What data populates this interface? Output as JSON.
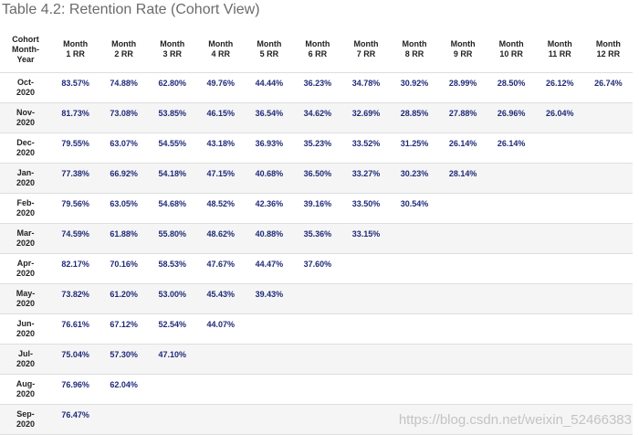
{
  "title": "Table 4.2: Retention Rate (Cohort View)",
  "colors": {
    "title_text": "#6b6b6b",
    "header_text": "#222222",
    "value_text": "#1f2a78",
    "row_alt_bg": "#f5f5f5",
    "border": "#dedede"
  },
  "table": {
    "headers": [
      [
        "Cohort",
        "Month-",
        "Year"
      ],
      [
        "Month",
        "1 RR"
      ],
      [
        "Month",
        "2 RR"
      ],
      [
        "Month",
        "3 RR"
      ],
      [
        "Month",
        "4 RR"
      ],
      [
        "Month",
        "5 RR"
      ],
      [
        "Month",
        "6 RR"
      ],
      [
        "Month",
        "7 RR"
      ],
      [
        "Month",
        "8 RR"
      ],
      [
        "Month",
        "9 RR"
      ],
      [
        "Month",
        "10 RR"
      ],
      [
        "Month",
        "11 RR"
      ],
      [
        "Month",
        "12 RR"
      ]
    ],
    "rows": [
      {
        "cohort": [
          "Oct-",
          "2020"
        ],
        "values": [
          "83.57%",
          "74.88%",
          "62.80%",
          "49.76%",
          "44.44%",
          "36.23%",
          "34.78%",
          "30.92%",
          "28.99%",
          "28.50%",
          "26.12%",
          "26.74%"
        ]
      },
      {
        "cohort": [
          "Nov-",
          "2020"
        ],
        "values": [
          "81.73%",
          "73.08%",
          "53.85%",
          "46.15%",
          "36.54%",
          "34.62%",
          "32.69%",
          "28.85%",
          "27.88%",
          "26.96%",
          "26.04%"
        ]
      },
      {
        "cohort": [
          "Dec-",
          "2020"
        ],
        "values": [
          "79.55%",
          "63.07%",
          "54.55%",
          "43.18%",
          "36.93%",
          "35.23%",
          "33.52%",
          "31.25%",
          "26.14%",
          "26.14%"
        ]
      },
      {
        "cohort": [
          "Jan-",
          "2020"
        ],
        "values": [
          "77.38%",
          "66.92%",
          "54.18%",
          "47.15%",
          "40.68%",
          "36.50%",
          "33.27%",
          "30.23%",
          "28.14%"
        ]
      },
      {
        "cohort": [
          "Feb-",
          "2020"
        ],
        "values": [
          "79.56%",
          "63.05%",
          "54.68%",
          "48.52%",
          "42.36%",
          "39.16%",
          "33.50%",
          "30.54%"
        ]
      },
      {
        "cohort": [
          "Mar-",
          "2020"
        ],
        "values": [
          "74.59%",
          "61.88%",
          "55.80%",
          "48.62%",
          "40.88%",
          "35.36%",
          "33.15%"
        ]
      },
      {
        "cohort": [
          "Apr-",
          "2020"
        ],
        "values": [
          "82.17%",
          "70.16%",
          "58.53%",
          "47.67%",
          "44.47%",
          "37.60%"
        ]
      },
      {
        "cohort": [
          "May-",
          "2020"
        ],
        "values": [
          "73.82%",
          "61.20%",
          "53.00%",
          "45.43%",
          "39.43%"
        ]
      },
      {
        "cohort": [
          "Jun-",
          "2020"
        ],
        "values": [
          "76.61%",
          "67.12%",
          "52.54%",
          "44.07%"
        ]
      },
      {
        "cohort": [
          "Jul-",
          "2020"
        ],
        "values": [
          "75.04%",
          "57.30%",
          "47.10%"
        ]
      },
      {
        "cohort": [
          "Aug-",
          "2020"
        ],
        "values": [
          "76.96%",
          "62.04%"
        ]
      },
      {
        "cohort": [
          "Sep-",
          "2020"
        ],
        "values": [
          "76.47%"
        ]
      }
    ]
  },
  "watermark": "https://blog.csdn.net/weixin_52466383"
}
